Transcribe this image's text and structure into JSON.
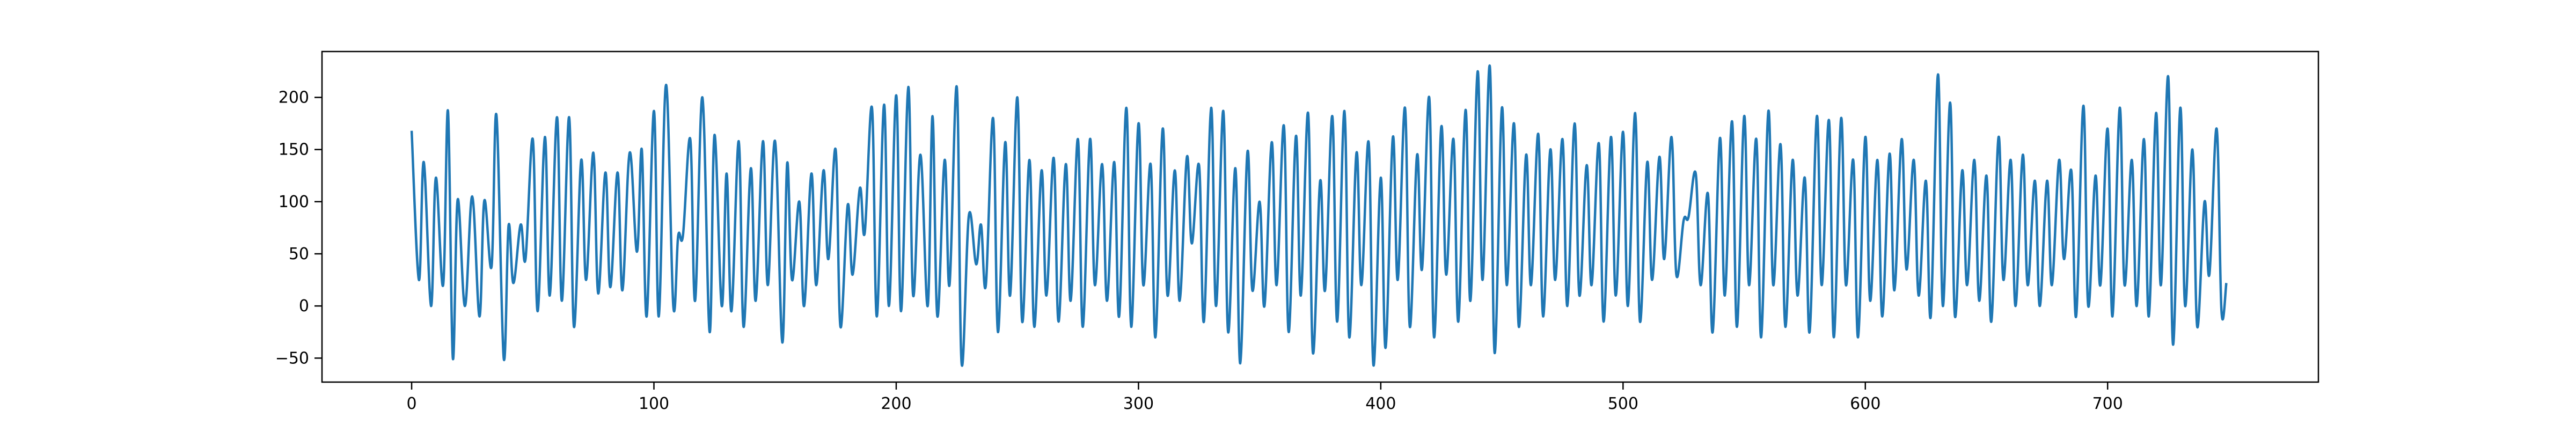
{
  "chart_data": {
    "type": "line",
    "title": "",
    "xlabel": "",
    "ylabel": "",
    "xlim": [
      -37,
      787
    ],
    "ylim": [
      -73,
      244
    ],
    "grid": false,
    "legend": "none",
    "x_ticks": [
      0,
      100,
      200,
      300,
      400,
      500,
      600,
      700
    ],
    "y_ticks": [
      -50,
      0,
      50,
      100,
      150,
      200
    ],
    "x_tick_labels": [
      "0",
      "100",
      "200",
      "300",
      "400",
      "500",
      "600",
      "700"
    ],
    "y_tick_labels": [
      "−50",
      "0",
      "50",
      "100",
      "150",
      "200"
    ],
    "series": [
      {
        "name": "",
        "color": "#1f77b4",
        "x_start": 0,
        "x_step": 1,
        "peaks": [
          [
            0,
            168
          ],
          [
            3,
            25
          ],
          [
            5,
            138
          ],
          [
            8,
            0
          ],
          [
            10,
            123
          ],
          [
            13,
            20
          ],
          [
            15,
            187
          ],
          [
            17,
            -50
          ],
          [
            19,
            102
          ],
          [
            22,
            0
          ],
          [
            25,
            105
          ],
          [
            28,
            -10
          ],
          [
            30,
            101
          ],
          [
            33,
            38
          ],
          [
            35,
            183
          ],
          [
            38,
            -50
          ],
          [
            40,
            77
          ],
          [
            42,
            22
          ],
          [
            45,
            78
          ],
          [
            47,
            45
          ],
          [
            50,
            160
          ],
          [
            52,
            -5
          ],
          [
            55,
            162
          ],
          [
            57,
            10
          ],
          [
            60,
            181
          ],
          [
            62,
            5
          ],
          [
            65,
            181
          ],
          [
            67,
            -20
          ],
          [
            70,
            140
          ],
          [
            72,
            25
          ],
          [
            75,
            147
          ],
          [
            77,
            12
          ],
          [
            80,
            128
          ],
          [
            82,
            18
          ],
          [
            85,
            128
          ],
          [
            87,
            15
          ],
          [
            90,
            147
          ],
          [
            93,
            52
          ],
          [
            95,
            150
          ],
          [
            97,
            -10
          ],
          [
            100,
            187
          ],
          [
            102,
            -10
          ],
          [
            105,
            212
          ],
          [
            108,
            0
          ],
          [
            110,
            67
          ],
          [
            112,
            68
          ],
          [
            115,
            160
          ],
          [
            117,
            5
          ],
          [
            120,
            200
          ],
          [
            123,
            -25
          ],
          [
            125,
            164
          ],
          [
            128,
            0
          ],
          [
            130,
            127
          ],
          [
            132,
            -5
          ],
          [
            135,
            158
          ],
          [
            137,
            -20
          ],
          [
            140,
            132
          ],
          [
            142,
            5
          ],
          [
            145,
            158
          ],
          [
            147,
            20
          ],
          [
            150,
            158
          ],
          [
            153,
            -35
          ],
          [
            155,
            137
          ],
          [
            157,
            25
          ],
          [
            160,
            100
          ],
          [
            162,
            0
          ],
          [
            165,
            127
          ],
          [
            167,
            20
          ],
          [
            170,
            130
          ],
          [
            172,
            45
          ],
          [
            175,
            150
          ],
          [
            177,
            -20
          ],
          [
            180,
            97
          ],
          [
            182,
            30
          ],
          [
            185,
            113
          ],
          [
            187,
            70
          ],
          [
            190,
            190
          ],
          [
            192,
            -10
          ],
          [
            195,
            193
          ],
          [
            197,
            0
          ],
          [
            200,
            202
          ],
          [
            202,
            -5
          ],
          [
            205,
            210
          ],
          [
            207,
            10
          ],
          [
            210,
            145
          ],
          [
            213,
            0
          ],
          [
            215,
            182
          ],
          [
            217,
            -10
          ],
          [
            220,
            140
          ],
          [
            222,
            20
          ],
          [
            225,
            210
          ],
          [
            227,
            -55
          ],
          [
            230,
            87
          ],
          [
            233,
            40
          ],
          [
            235,
            78
          ],
          [
            237,
            20
          ],
          [
            240,
            180
          ],
          [
            242,
            -25
          ],
          [
            245,
            157
          ],
          [
            247,
            10
          ],
          [
            250,
            200
          ],
          [
            252,
            -15
          ],
          [
            255,
            140
          ],
          [
            257,
            -20
          ],
          [
            260,
            130
          ],
          [
            262,
            10
          ],
          [
            265,
            142
          ],
          [
            267,
            -15
          ],
          [
            270,
            136
          ],
          [
            272,
            5
          ],
          [
            275,
            160
          ],
          [
            277,
            -20
          ],
          [
            280,
            160
          ],
          [
            282,
            20
          ],
          [
            285,
            136
          ],
          [
            287,
            5
          ],
          [
            290,
            138
          ],
          [
            292,
            -10
          ],
          [
            295,
            190
          ],
          [
            297,
            -20
          ],
          [
            300,
            175
          ],
          [
            302,
            20
          ],
          [
            305,
            136
          ],
          [
            307,
            -30
          ],
          [
            310,
            170
          ],
          [
            312,
            10
          ],
          [
            315,
            130
          ],
          [
            317,
            5
          ],
          [
            320,
            143
          ],
          [
            322,
            60
          ],
          [
            325,
            135
          ],
          [
            327,
            -15
          ],
          [
            330,
            190
          ],
          [
            332,
            0
          ],
          [
            335,
            187
          ],
          [
            337,
            -25
          ],
          [
            340,
            132
          ],
          [
            342,
            -55
          ],
          [
            345,
            148
          ],
          [
            347,
            15
          ],
          [
            350,
            100
          ],
          [
            352,
            0
          ],
          [
            355,
            157
          ],
          [
            357,
            20
          ],
          [
            360,
            173
          ],
          [
            362,
            -25
          ],
          [
            365,
            163
          ],
          [
            367,
            10
          ],
          [
            370,
            185
          ],
          [
            372,
            -45
          ],
          [
            375,
            120
          ],
          [
            377,
            15
          ],
          [
            380,
            182
          ],
          [
            382,
            -15
          ],
          [
            385,
            187
          ],
          [
            387,
            -30
          ],
          [
            390,
            147
          ],
          [
            392,
            20
          ],
          [
            395,
            157
          ],
          [
            397,
            -57
          ],
          [
            400,
            123
          ],
          [
            402,
            -40
          ],
          [
            405,
            162
          ],
          [
            407,
            25
          ],
          [
            410,
            190
          ],
          [
            412,
            -20
          ],
          [
            415,
            145
          ],
          [
            417,
            35
          ],
          [
            420,
            200
          ],
          [
            422,
            -30
          ],
          [
            425,
            172
          ],
          [
            427,
            30
          ],
          [
            430,
            160
          ],
          [
            432,
            -15
          ],
          [
            435,
            188
          ],
          [
            437,
            5
          ],
          [
            440,
            225
          ],
          [
            442,
            25
          ],
          [
            445,
            230
          ],
          [
            447,
            -45
          ],
          [
            450,
            190
          ],
          [
            452,
            20
          ],
          [
            455,
            175
          ],
          [
            457,
            -20
          ],
          [
            460,
            145
          ],
          [
            462,
            20
          ],
          [
            465,
            165
          ],
          [
            467,
            -10
          ],
          [
            470,
            150
          ],
          [
            472,
            25
          ],
          [
            475,
            160
          ],
          [
            477,
            0
          ],
          [
            480,
            175
          ],
          [
            482,
            10
          ],
          [
            485,
            135
          ],
          [
            487,
            20
          ],
          [
            490,
            156
          ],
          [
            492,
            -15
          ],
          [
            495,
            162
          ],
          [
            497,
            10
          ],
          [
            500,
            167
          ],
          [
            502,
            0
          ],
          [
            505,
            185
          ],
          [
            507,
            -15
          ],
          [
            510,
            138
          ],
          [
            512,
            25
          ],
          [
            515,
            143
          ],
          [
            517,
            45
          ],
          [
            520,
            162
          ],
          [
            522,
            30
          ],
          [
            525,
            82
          ],
          [
            527,
            85
          ],
          [
            530,
            127
          ],
          [
            532,
            20
          ],
          [
            535,
            108
          ],
          [
            537,
            -25
          ],
          [
            540,
            161
          ],
          [
            542,
            10
          ],
          [
            545,
            177
          ],
          [
            547,
            -20
          ],
          [
            550,
            182
          ],
          [
            552,
            20
          ],
          [
            555,
            160
          ],
          [
            557,
            -30
          ],
          [
            560,
            187
          ],
          [
            562,
            20
          ],
          [
            565,
            155
          ],
          [
            567,
            -20
          ],
          [
            570,
            140
          ],
          [
            572,
            10
          ],
          [
            575,
            123
          ],
          [
            577,
            -25
          ],
          [
            580,
            182
          ],
          [
            582,
            20
          ],
          [
            585,
            178
          ],
          [
            587,
            -30
          ],
          [
            590,
            180
          ],
          [
            592,
            20
          ],
          [
            595,
            140
          ],
          [
            597,
            -30
          ],
          [
            600,
            162
          ],
          [
            602,
            5
          ],
          [
            605,
            140
          ],
          [
            607,
            -10
          ],
          [
            610,
            146
          ],
          [
            612,
            15
          ],
          [
            615,
            160
          ],
          [
            617,
            35
          ],
          [
            620,
            140
          ],
          [
            622,
            10
          ],
          [
            625,
            120
          ],
          [
            627,
            -10
          ],
          [
            630,
            222
          ],
          [
            632,
            0
          ],
          [
            635,
            195
          ],
          [
            637,
            -10
          ],
          [
            640,
            130
          ],
          [
            642,
            20
          ],
          [
            645,
            140
          ],
          [
            647,
            5
          ],
          [
            650,
            125
          ],
          [
            652,
            -15
          ],
          [
            655,
            162
          ],
          [
            657,
            25
          ],
          [
            660,
            140
          ],
          [
            662,
            0
          ],
          [
            665,
            145
          ],
          [
            667,
            20
          ],
          [
            670,
            120
          ],
          [
            672,
            0
          ],
          [
            675,
            120
          ],
          [
            677,
            20
          ],
          [
            680,
            140
          ],
          [
            682,
            45
          ],
          [
            685,
            130
          ],
          [
            687,
            -10
          ],
          [
            690,
            192
          ],
          [
            692,
            0
          ],
          [
            695,
            125
          ],
          [
            697,
            20
          ],
          [
            700,
            170
          ],
          [
            702,
            -10
          ],
          [
            705,
            190
          ],
          [
            707,
            20
          ],
          [
            710,
            140
          ],
          [
            712,
            0
          ],
          [
            715,
            160
          ],
          [
            717,
            -10
          ],
          [
            720,
            185
          ],
          [
            722,
            20
          ],
          [
            725,
            220
          ],
          [
            727,
            -37
          ],
          [
            730,
            190
          ],
          [
            732,
            0
          ],
          [
            735,
            150
          ],
          [
            737,
            -20
          ],
          [
            740,
            100
          ],
          [
            742,
            30
          ],
          [
            745,
            170
          ],
          [
            747,
            -5
          ],
          [
            749,
            22
          ]
        ]
      }
    ]
  }
}
